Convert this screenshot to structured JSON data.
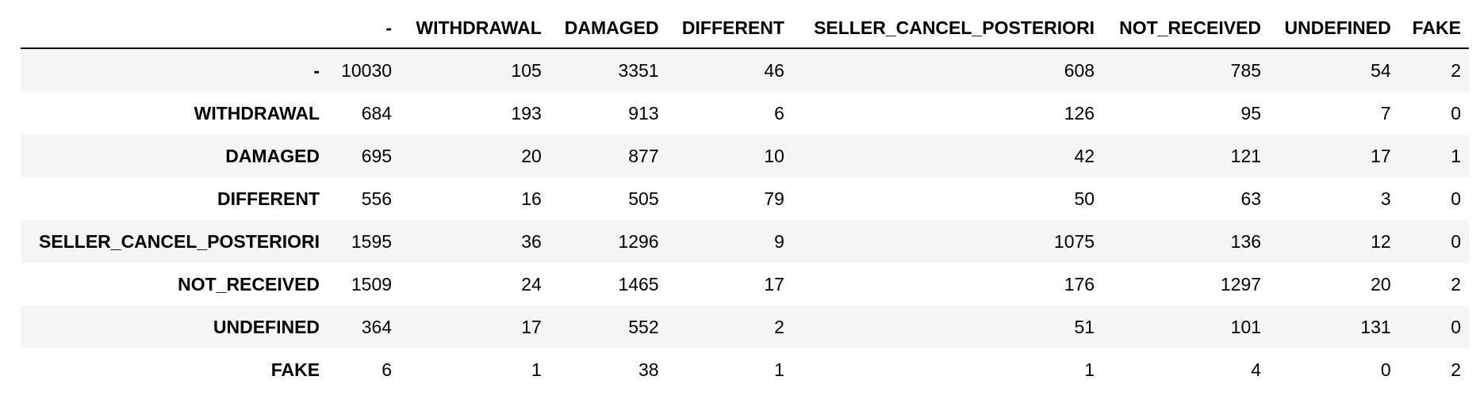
{
  "table": {
    "corner_label": "",
    "columns": [
      "-",
      "WITHDRAWAL",
      "DAMAGED",
      "DIFFERENT",
      "SELLER_CANCEL_POSTERIORI",
      "NOT_RECEIVED",
      "UNDEFINED",
      "FAKE"
    ],
    "rows": [
      {
        "label": "-",
        "values": [
          "10030",
          "105",
          "3351",
          "46",
          "608",
          "785",
          "54",
          "2"
        ]
      },
      {
        "label": "WITHDRAWAL",
        "values": [
          "684",
          "193",
          "913",
          "6",
          "126",
          "95",
          "7",
          "0"
        ]
      },
      {
        "label": "DAMAGED",
        "values": [
          "695",
          "20",
          "877",
          "10",
          "42",
          "121",
          "17",
          "1"
        ]
      },
      {
        "label": "DIFFERENT",
        "values": [
          "556",
          "16",
          "505",
          "79",
          "50",
          "63",
          "3",
          "0"
        ]
      },
      {
        "label": "SELLER_CANCEL_POSTERIORI",
        "values": [
          "1595",
          "36",
          "1296",
          "9",
          "1075",
          "136",
          "12",
          "0"
        ]
      },
      {
        "label": "NOT_RECEIVED",
        "values": [
          "1509",
          "24",
          "1465",
          "17",
          "176",
          "1297",
          "20",
          "2"
        ]
      },
      {
        "label": "UNDEFINED",
        "values": [
          "364",
          "17",
          "552",
          "2",
          "51",
          "101",
          "131",
          "0"
        ]
      },
      {
        "label": "FAKE",
        "values": [
          "6",
          "1",
          "38",
          "1",
          "1",
          "4",
          "0",
          "2"
        ]
      }
    ]
  }
}
